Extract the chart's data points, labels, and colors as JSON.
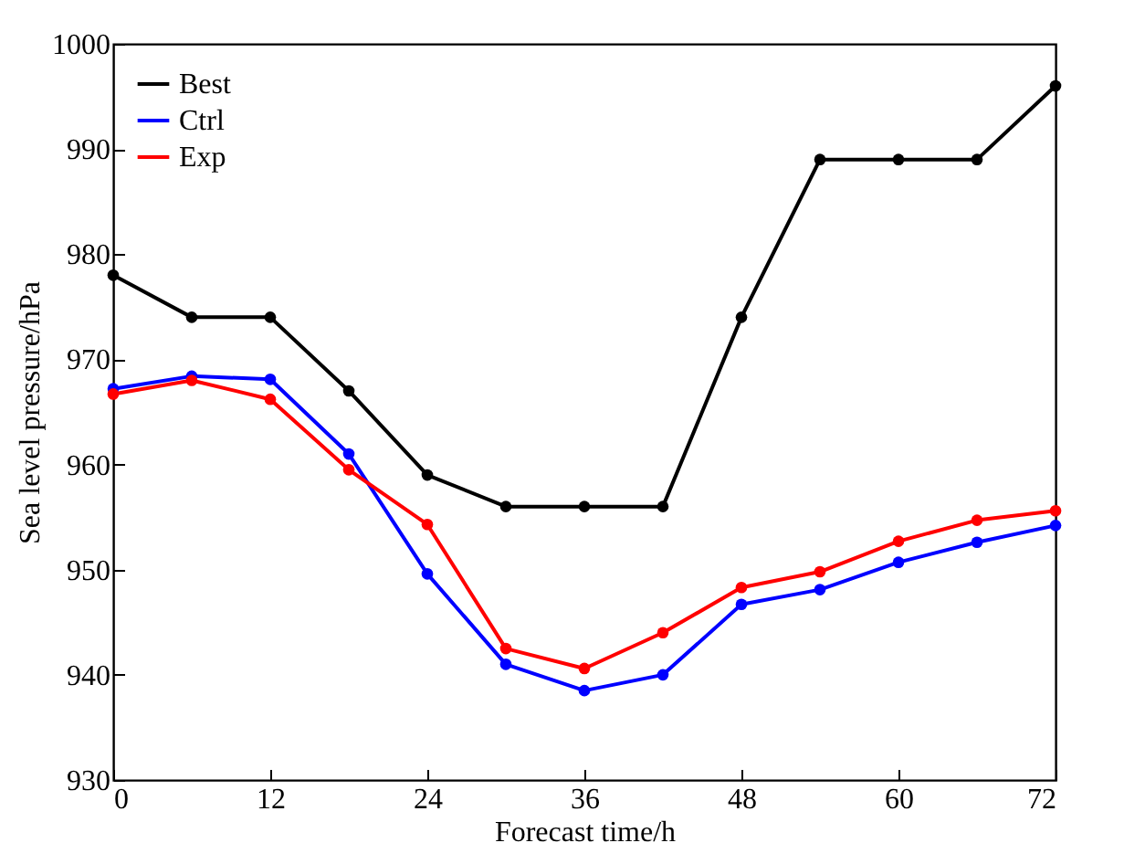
{
  "chart_data": {
    "type": "line",
    "xlabel": "Forecast time/h",
    "ylabel": "Sea level pressure/hPa",
    "x": [
      0,
      6,
      12,
      18,
      24,
      30,
      36,
      42,
      48,
      54,
      60,
      66,
      72
    ],
    "series": [
      {
        "name": "Best",
        "color": "#000000",
        "values": [
          978,
          974,
          974,
          967,
          959,
          956,
          956,
          956,
          974,
          989,
          989,
          989,
          996
        ]
      },
      {
        "name": "Ctrl",
        "color": "#0000ff",
        "values": [
          967.2,
          968.4,
          968.1,
          961,
          949.6,
          941,
          938.5,
          940,
          946.7,
          948.1,
          950.7,
          952.6,
          954.2
        ]
      },
      {
        "name": "Exp",
        "color": "#ff0000",
        "values": [
          966.7,
          968,
          966.2,
          959.5,
          954.3,
          942.5,
          940.6,
          944,
          948.3,
          949.8,
          952.7,
          954.7,
          955.6
        ]
      }
    ],
    "xlim": [
      0,
      72
    ],
    "xticks": [
      0,
      12,
      24,
      36,
      48,
      60,
      72
    ],
    "ylim": [
      930,
      1000
    ],
    "yticks": [
      930,
      940,
      950,
      960,
      970,
      980,
      990,
      1000
    ],
    "grid": false,
    "legend": "top left",
    "marker": "circle",
    "line_style": "solid"
  }
}
